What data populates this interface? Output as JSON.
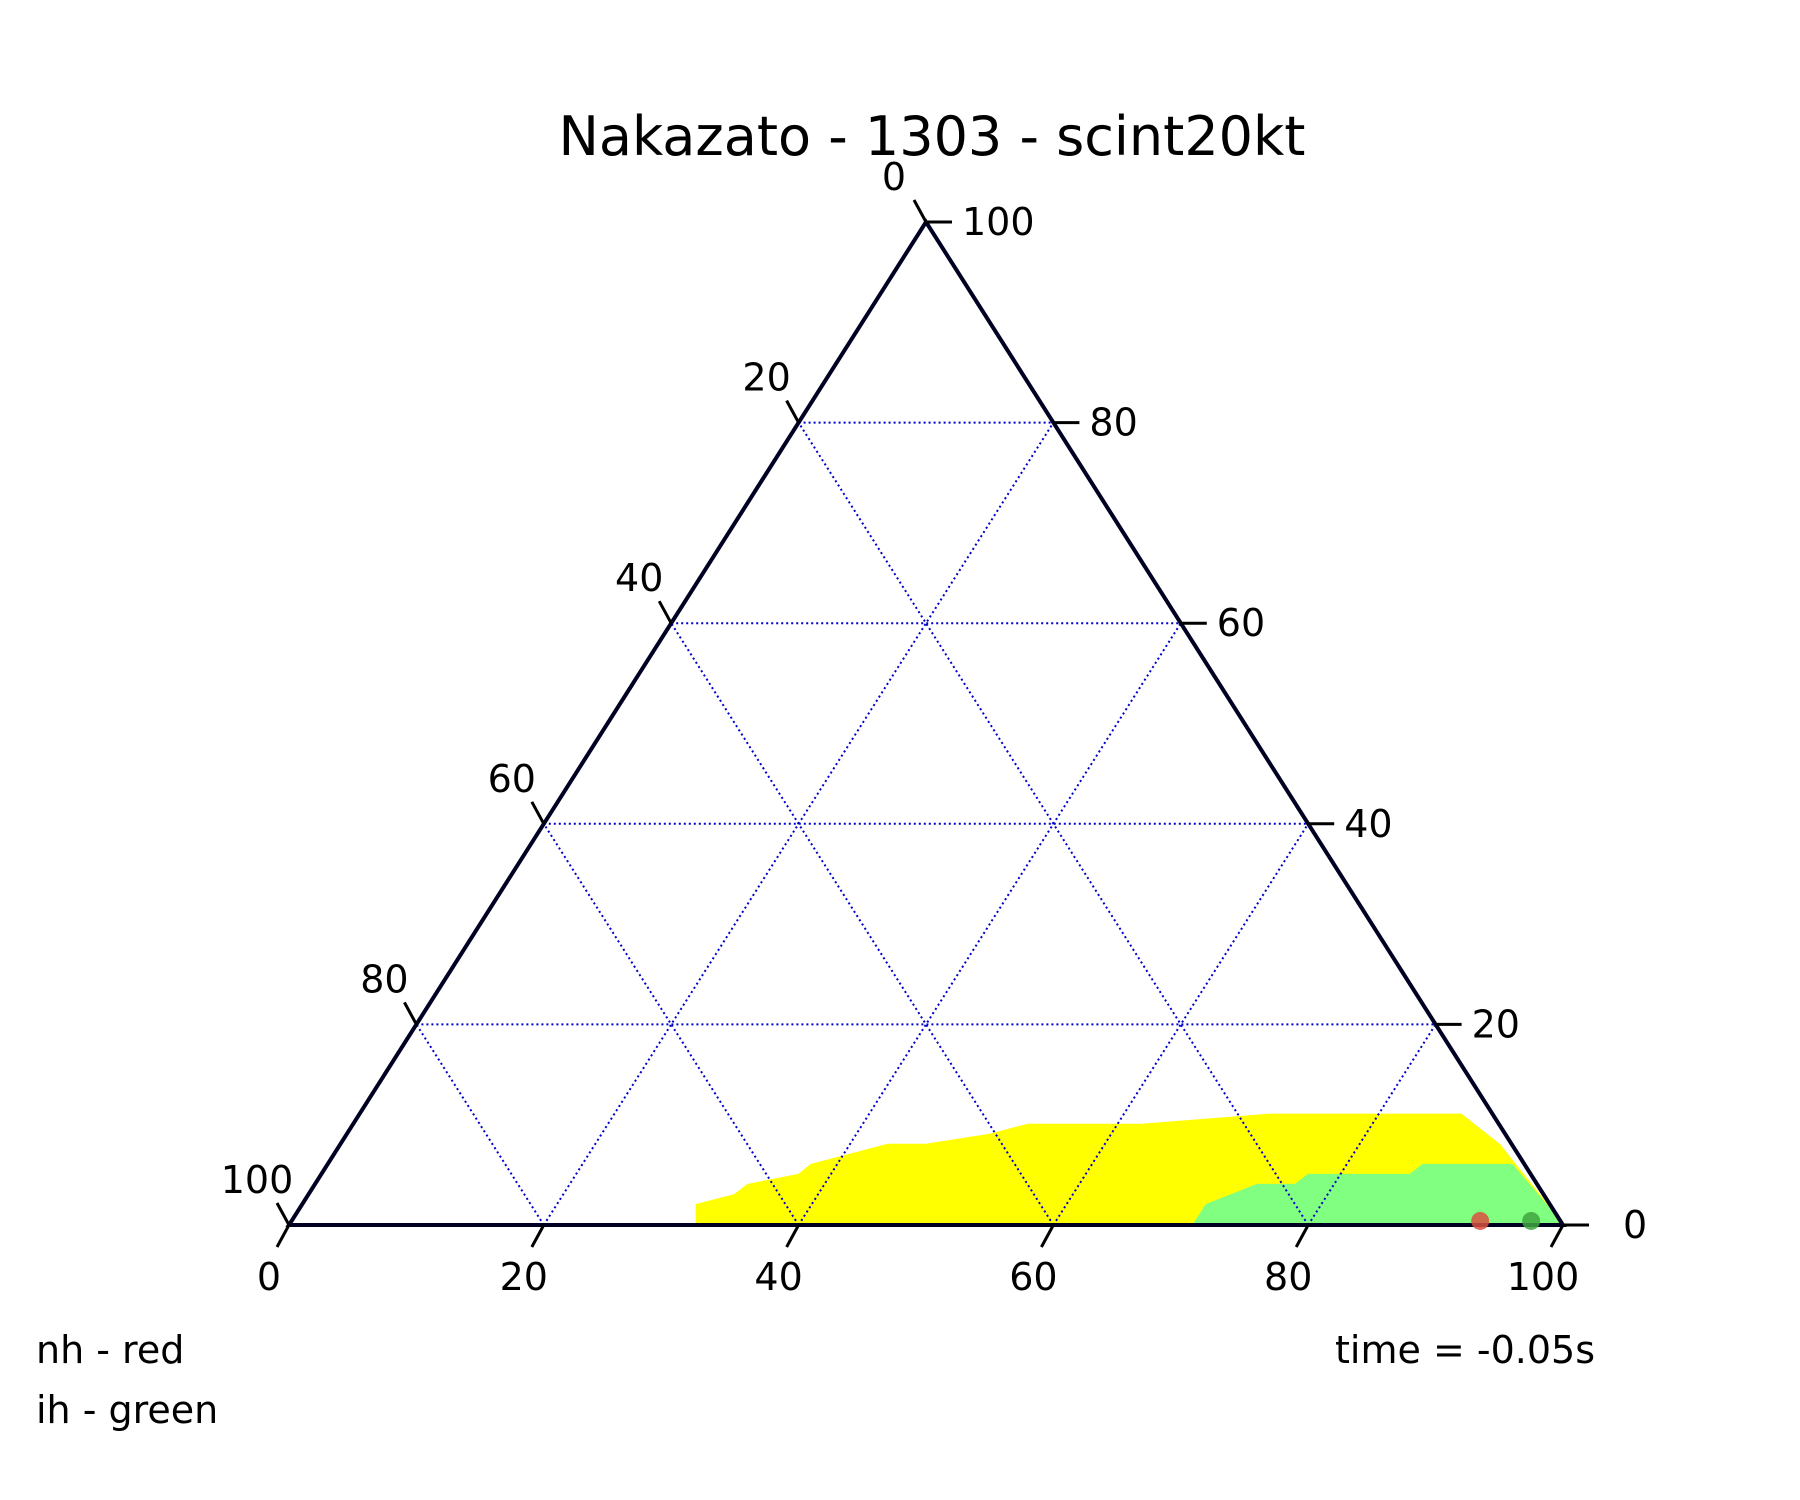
{
  "chart_data": {
    "type": "scatter",
    "chart_kind": "ternary",
    "title": "Nakazato - 1303 - scint20kt",
    "axes": {
      "bottom": {
        "ticks": [
          "0",
          "20",
          "40",
          "60",
          "80",
          "100"
        ],
        "range": [
          0,
          100
        ]
      },
      "right": {
        "ticks": [
          "0",
          "20",
          "40",
          "60",
          "80",
          "100"
        ],
        "range": [
          0,
          100
        ]
      },
      "left": {
        "ticks": [
          "0",
          "20",
          "40",
          "60",
          "80",
          "100"
        ],
        "range": [
          0,
          100
        ]
      }
    },
    "grid": true,
    "grid_step": 20,
    "regions": [
      {
        "color": "#ffff00",
        "boundary": [
          [
            32,
            0
          ],
          [
            32,
            2
          ],
          [
            35,
            3
          ],
          [
            36,
            4
          ],
          [
            40,
            5
          ],
          [
            41,
            6
          ],
          [
            44,
            7
          ],
          [
            47,
            8
          ],
          [
            50,
            8
          ],
          [
            55,
            9
          ],
          [
            58,
            10
          ],
          [
            67,
            10
          ],
          [
            77,
            11
          ],
          [
            85,
            11
          ],
          [
            92,
            11
          ],
          [
            95,
            8
          ],
          [
            100,
            0
          ]
        ]
      },
      {
        "color": "#80ff80",
        "boundary": [
          [
            71,
            0
          ],
          [
            72,
            2
          ],
          [
            74,
            3
          ],
          [
            76,
            4
          ],
          [
            79,
            4
          ],
          [
            80,
            5
          ],
          [
            84,
            5
          ],
          [
            88,
            5
          ],
          [
            89,
            6
          ],
          [
            96,
            6
          ],
          [
            100,
            0
          ]
        ]
      }
    ],
    "points": [
      {
        "label": "nh",
        "color": "#d9503f",
        "b": 93.5,
        "r": 0.2
      },
      {
        "label": "ih",
        "color": "#3fa63f",
        "b": 97.5,
        "r": 0.2
      }
    ],
    "legend": {
      "nh": "nh - red",
      "ih": "ih - green"
    },
    "annotation": "time = -0.05s"
  }
}
